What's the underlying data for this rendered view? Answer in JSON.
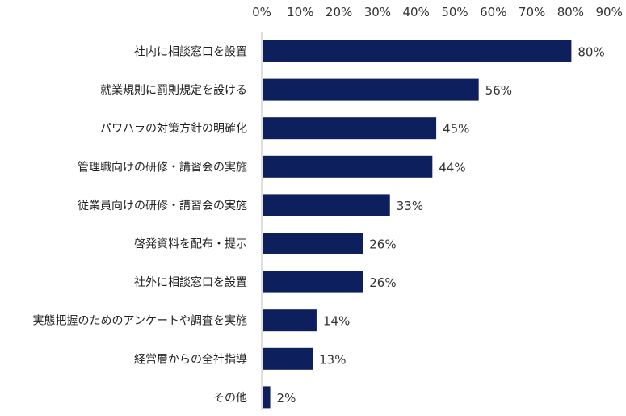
{
  "chart_data": {
    "type": "bar",
    "orientation": "horizontal",
    "categories": [
      "社内に相談窓口を設置",
      "就業規則に罰則規定を設ける",
      "パワハラの対策方針の明確化",
      "管理職向けの研修・講習会の実施",
      "従業員向けの研修・講習会の実施",
      "啓発資料を配布・提示",
      "社外に相談窓口を設置",
      "実態把握のためのアンケートや調査を実施",
      "経営層からの全社指導",
      "その他"
    ],
    "values": [
      80,
      56,
      45,
      44,
      33,
      26,
      26,
      14,
      13,
      2
    ],
    "value_labels": [
      "80%",
      "56%",
      "45%",
      "44%",
      "33%",
      "26%",
      "26%",
      "14%",
      "13%",
      "2%"
    ],
    "x_ticks": [
      "0%",
      "10%",
      "20%",
      "30%",
      "40%",
      "50%",
      "60%",
      "70%",
      "80%",
      "90%"
    ],
    "xlim": [
      0,
      90
    ],
    "axis_position": "top",
    "grid": false,
    "legend": "none",
    "bar_color": "#0d1f5c"
  }
}
